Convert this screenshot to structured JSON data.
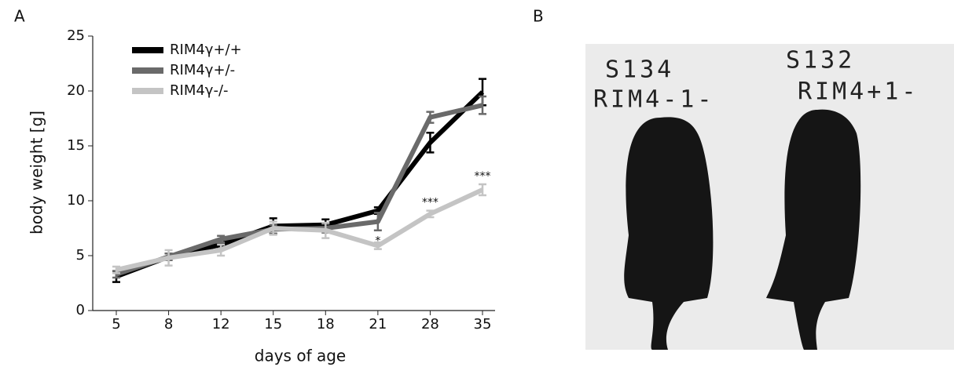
{
  "panel_labels": [
    "A",
    "B"
  ],
  "chart_data": {
    "type": "line",
    "x_label": "days of age",
    "y_label": "body weight [g]",
    "categories": [
      "5",
      "8",
      "12",
      "15",
      "18",
      "21",
      "28",
      "35"
    ],
    "ylim": [
      0,
      25
    ],
    "yticks": [
      0,
      5,
      10,
      15,
      20,
      25
    ],
    "legend": "upper left",
    "series": [
      {
        "name": "RIM4γ+/+",
        "color": "#000000",
        "values": [
          3.1,
          4.9,
          6.0,
          7.7,
          7.8,
          9.1,
          15.3,
          19.9
        ],
        "errors": [
          0.5,
          0.3,
          0.4,
          0.7,
          0.5,
          0.3,
          0.9,
          1.2
        ]
      },
      {
        "name": "RIM4γ+/-",
        "color": "#6a6a6a",
        "values": [
          3.3,
          4.9,
          6.5,
          7.4,
          7.5,
          8.1,
          17.6,
          18.7
        ],
        "errors": [
          0.3,
          0.3,
          0.3,
          0.4,
          0.4,
          0.8,
          0.5,
          0.8
        ]
      },
      {
        "name": "RIM4γ-/-",
        "color": "#c4c4c4",
        "values": [
          3.7,
          4.8,
          5.5,
          7.5,
          7.3,
          5.9,
          8.8,
          11.0
        ],
        "errors": [
          0.3,
          0.7,
          0.5,
          0.6,
          0.7,
          0.3,
          0.3,
          0.5
        ]
      }
    ],
    "annotations": [
      {
        "category": "21",
        "label": "*"
      },
      {
        "category": "28",
        "label": "***"
      },
      {
        "category": "35",
        "label": "***"
      }
    ]
  },
  "photo": {
    "labels": [
      "S134",
      "RIM4-1-",
      "S132",
      "RIM4+1-"
    ]
  }
}
